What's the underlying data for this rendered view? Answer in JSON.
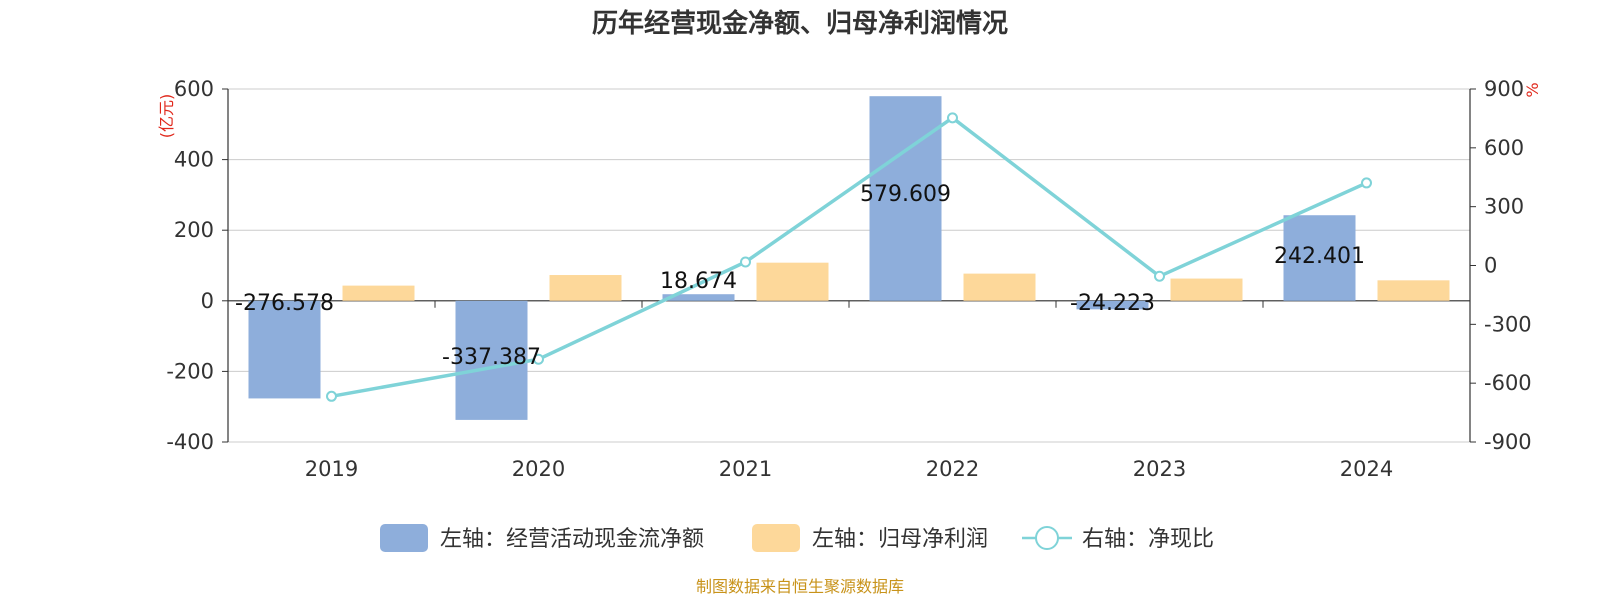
{
  "colors": {
    "bar_cash": "#8eaedb",
    "bar_profit": "#fdd89a",
    "line": "#7fd3d8",
    "grid": "#cccccc",
    "axis": "#333333",
    "unit": "#e0281c",
    "source": "#c8931a"
  },
  "chart_data": {
    "type": "bar",
    "title": "历年经营现金净额、归母净利润情况",
    "categories": [
      "2019",
      "2020",
      "2021",
      "2022",
      "2023",
      "2024"
    ],
    "left_axis": {
      "unit": "(亿元)",
      "ylim": [
        -400,
        600
      ],
      "ticks": [
        "600",
        "400",
        "200",
        "0",
        "-200",
        "-400"
      ]
    },
    "right_axis": {
      "unit": "%",
      "ylim": [
        -900,
        900
      ],
      "ticks": [
        "900",
        "600",
        "300",
        "0",
        "-300",
        "-600",
        "-900"
      ]
    },
    "series": [
      {
        "name": "左轴：经营活动现金流净额",
        "type": "bar",
        "axis": "left",
        "values": [
          -276.578,
          -337.387,
          18.674,
          579.609,
          -24.223,
          242.401
        ],
        "labels": [
          "-276.578",
          "-337.387",
          "18.674",
          "579.609",
          "-24.223",
          "242.401"
        ]
      },
      {
        "name": "左轴：归母净利润",
        "type": "bar",
        "axis": "left",
        "values": [
          43,
          73,
          108,
          77,
          63,
          58
        ]
      },
      {
        "name": "右轴：净现比",
        "type": "line",
        "axis": "right",
        "values": [
          -667,
          -478,
          18,
          753,
          -55,
          421
        ]
      }
    ],
    "grid": true,
    "legend_position": "bottom"
  },
  "footer": {
    "source": "制图数据来自恒生聚源数据库"
  }
}
